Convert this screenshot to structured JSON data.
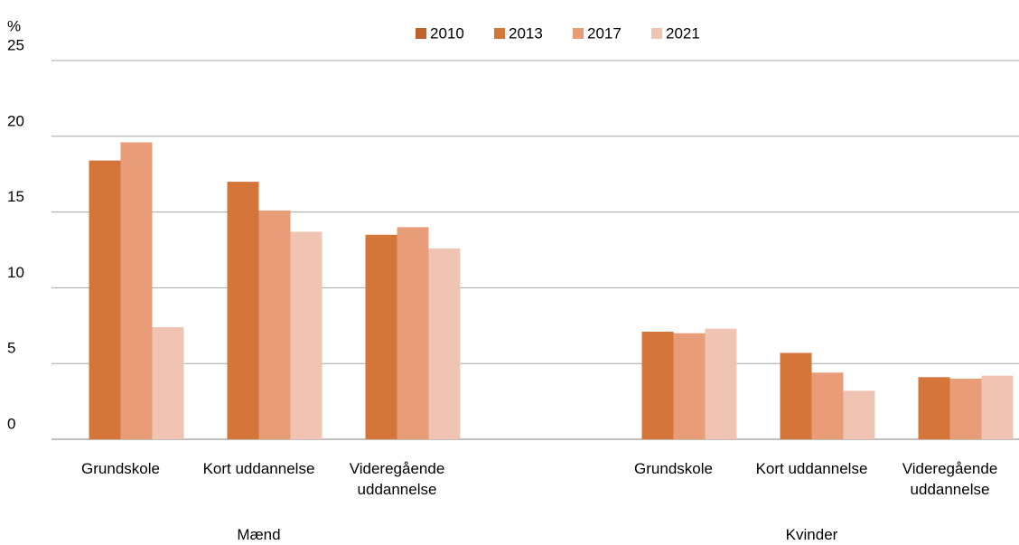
{
  "chart_data": {
    "type": "bar",
    "y_label": "%",
    "categories": [
      "Grundskole",
      "Kort uddannelse",
      "Videregående uddannelse",
      null,
      "Grundskole",
      "Kort uddannelse",
      "Videregående uddannelse"
    ],
    "group_labels": [
      "Mænd",
      "Kvinder"
    ],
    "series": [
      {
        "name": "2010",
        "color": "#c0632b",
        "values": [
          null,
          null,
          null,
          null,
          null,
          null,
          null
        ]
      },
      {
        "name": "2013",
        "color": "#d4763a",
        "values": [
          18.4,
          17.0,
          13.5,
          null,
          7.1,
          5.7,
          4.1
        ]
      },
      {
        "name": "2017",
        "color": "#e89c77",
        "values": [
          19.6,
          15.1,
          14.0,
          null,
          7.0,
          4.4,
          4.0
        ]
      },
      {
        "name": "2021",
        "color": "#f0c4b3",
        "values": [
          7.4,
          13.7,
          12.6,
          null,
          7.3,
          3.2,
          4.2
        ]
      }
    ],
    "ylim": [
      0,
      25
    ],
    "yticks": [
      0,
      5,
      10,
      15,
      20,
      25
    ],
    "grid": true,
    "legend": "top"
  }
}
